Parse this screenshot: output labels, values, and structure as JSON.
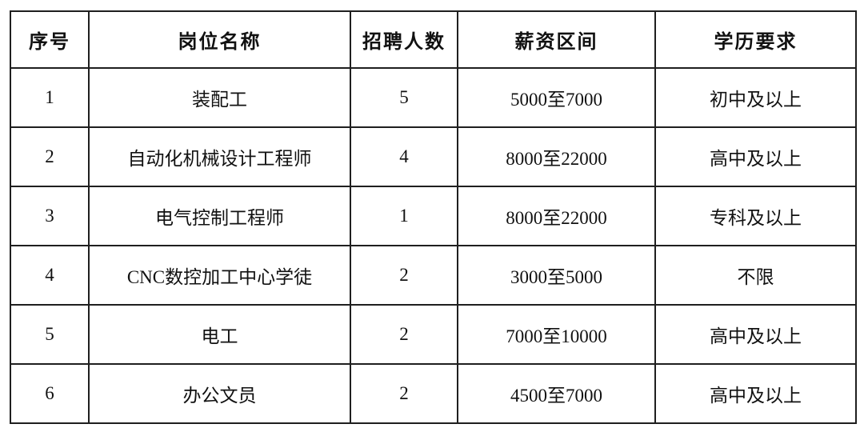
{
  "table": {
    "columns": [
      "序号",
      "岗位名称",
      "招聘人数",
      "薪资区间",
      "学历要求"
    ],
    "rows": [
      [
        "1",
        "装配工",
        "5",
        "5000至7000",
        "初中及以上"
      ],
      [
        "2",
        "自动化机械设计工程师",
        "4",
        "8000至22000",
        "高中及以上"
      ],
      [
        "3",
        "电气控制工程师",
        "1",
        "8000至22000",
        "专科及以上"
      ],
      [
        "4",
        "CNC数控加工中心学徒",
        "2",
        "3000至5000",
        "不限"
      ],
      [
        "5",
        "电工",
        "2",
        "7000至10000",
        "高中及以上"
      ],
      [
        "6",
        "办公文员",
        "2",
        "4500至7000",
        "高中及以上"
      ]
    ],
    "colors": {
      "border": "#1f1f1f",
      "text": "#111111",
      "background": "#ffffff"
    }
  }
}
